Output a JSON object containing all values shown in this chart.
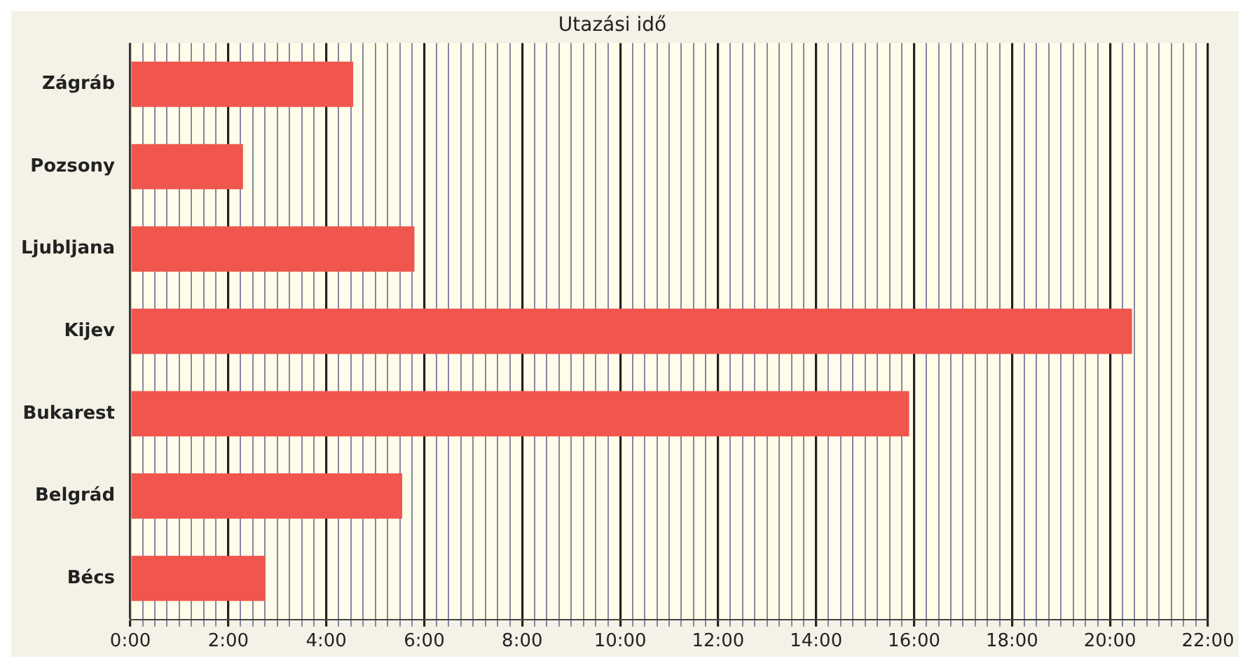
{
  "chart_data": {
    "type": "bar",
    "orientation": "horizontal",
    "title": "Utazási idő",
    "categories": [
      "Zágráb",
      "Pozsony",
      "Ljubljana",
      "Kijev",
      "Bukarest",
      "Belgrád",
      "Bécs"
    ],
    "values": [
      4.55,
      2.3,
      5.8,
      20.45,
      15.9,
      5.55,
      2.75
    ],
    "color": "#f0564e",
    "xlim": [
      0,
      22
    ],
    "xticks": [
      {
        "value": 0,
        "label": "0:00"
      },
      {
        "value": 0.25,
        "label": null
      },
      {
        "value": 0.5,
        "label": null
      },
      {
        "value": 0.75,
        "label": null
      },
      {
        "value": 1,
        "label": null
      },
      {
        "value": 1.25,
        "label": null
      },
      {
        "value": 1.5,
        "label": null
      },
      {
        "value": 1.75,
        "label": null
      },
      {
        "value": 2,
        "label": "2:00"
      },
      {
        "value": 2.25,
        "label": null
      },
      {
        "value": 2.5,
        "label": null
      },
      {
        "value": 2.75,
        "label": null
      },
      {
        "value": 3,
        "label": null
      },
      {
        "value": 3.25,
        "label": null
      },
      {
        "value": 3.5,
        "label": null
      },
      {
        "value": 3.75,
        "label": null
      },
      {
        "value": 4,
        "label": "4:00"
      },
      {
        "value": 4.25,
        "label": null
      },
      {
        "value": 4.5,
        "label": null
      },
      {
        "value": 4.75,
        "label": null
      },
      {
        "value": 5,
        "label": null
      },
      {
        "value": 5.25,
        "label": null
      },
      {
        "value": 5.5,
        "label": null
      },
      {
        "value": 5.75,
        "label": null
      },
      {
        "value": 6,
        "label": "6:00"
      },
      {
        "value": 6.25,
        "label": null
      },
      {
        "value": 6.5,
        "label": null
      },
      {
        "value": 6.75,
        "label": null
      },
      {
        "value": 7,
        "label": null
      },
      {
        "value": 7.25,
        "label": null
      },
      {
        "value": 7.5,
        "label": null
      },
      {
        "value": 7.75,
        "label": null
      },
      {
        "value": 8,
        "label": "8:00"
      },
      {
        "value": 8.25,
        "label": null
      },
      {
        "value": 8.5,
        "label": null
      },
      {
        "value": 8.75,
        "label": null
      },
      {
        "value": 9,
        "label": null
      },
      {
        "value": 9.25,
        "label": null
      },
      {
        "value": 9.5,
        "label": null
      },
      {
        "value": 9.75,
        "label": null
      },
      {
        "value": 10,
        "label": "10:00"
      },
      {
        "value": 10.25,
        "label": null
      },
      {
        "value": 10.5,
        "label": null
      },
      {
        "value": 10.75,
        "label": null
      },
      {
        "value": 11,
        "label": null
      },
      {
        "value": 11.25,
        "label": null
      },
      {
        "value": 11.5,
        "label": null
      },
      {
        "value": 11.75,
        "label": null
      },
      {
        "value": 12,
        "label": "12:00"
      },
      {
        "value": 12.25,
        "label": null
      },
      {
        "value": 12.5,
        "label": null
      },
      {
        "value": 12.75,
        "label": null
      },
      {
        "value": 13,
        "label": null
      },
      {
        "value": 13.25,
        "label": null
      },
      {
        "value": 13.5,
        "label": null
      },
      {
        "value": 13.75,
        "label": null
      },
      {
        "value": 14,
        "label": "14:00"
      },
      {
        "value": 14.25,
        "label": null
      },
      {
        "value": 14.5,
        "label": null
      },
      {
        "value": 14.75,
        "label": null
      },
      {
        "value": 15,
        "label": null
      },
      {
        "value": 15.25,
        "label": null
      },
      {
        "value": 15.5,
        "label": null
      },
      {
        "value": 15.75,
        "label": null
      },
      {
        "value": 16,
        "label": "16:00"
      },
      {
        "value": 16.25,
        "label": null
      },
      {
        "value": 16.5,
        "label": null
      },
      {
        "value": 16.75,
        "label": null
      },
      {
        "value": 17,
        "label": null
      },
      {
        "value": 17.25,
        "label": null
      },
      {
        "value": 17.5,
        "label": null
      },
      {
        "value": 17.75,
        "label": null
      },
      {
        "value": 18,
        "label": "18:00"
      },
      {
        "value": 18.25,
        "label": null
      },
      {
        "value": 18.5,
        "label": null
      },
      {
        "value": 18.75,
        "label": null
      },
      {
        "value": 19,
        "label": null
      },
      {
        "value": 19.25,
        "label": null
      },
      {
        "value": 19.5,
        "label": null
      },
      {
        "value": 19.75,
        "label": null
      },
      {
        "value": 20,
        "label": "20:00"
      },
      {
        "value": 20.25,
        "label": null
      },
      {
        "value": 20.5,
        "label": null
      },
      {
        "value": 20.75,
        "label": null
      },
      {
        "value": 21,
        "label": null
      },
      {
        "value": 21.25,
        "label": null
      },
      {
        "value": 21.5,
        "label": null
      },
      {
        "value": 21.75,
        "label": null
      },
      {
        "value": 22,
        "label": "22:00"
      }
    ],
    "grid": "x"
  }
}
